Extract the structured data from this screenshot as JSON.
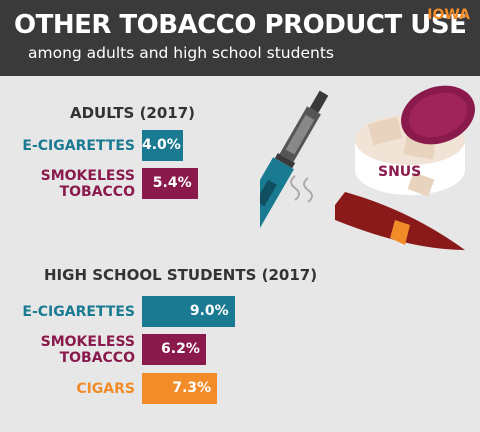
{
  "header": {
    "title": "OTHER TOBACCO PRODUCT USE",
    "subtitle": "among adults and high school students",
    "state": "IOWA"
  },
  "chart_data": [
    {
      "type": "bar",
      "orientation": "horizontal",
      "title": "ADULTS (2017)",
      "categories": [
        "E-CIGARETTES",
        "SMOKELESS TOBACCO"
      ],
      "values": [
        4.0,
        5.4
      ],
      "value_labels": [
        "4.0%",
        "5.4%"
      ],
      "colors": [
        "#1a7a92",
        "#8a1a4c"
      ]
    },
    {
      "type": "bar",
      "orientation": "horizontal",
      "title": "HIGH SCHOOL STUDENTS (2017)",
      "categories": [
        "E-CIGARETTES",
        "SMOKELESS TOBACCO",
        "CIGARS"
      ],
      "values": [
        9.0,
        6.2,
        7.3
      ],
      "value_labels": [
        "9.0%",
        "6.2%",
        "7.3%"
      ],
      "colors": [
        "#1a7a92",
        "#8a1a4c",
        "#f28c28"
      ]
    }
  ],
  "illustration": {
    "label": "SNUS"
  }
}
